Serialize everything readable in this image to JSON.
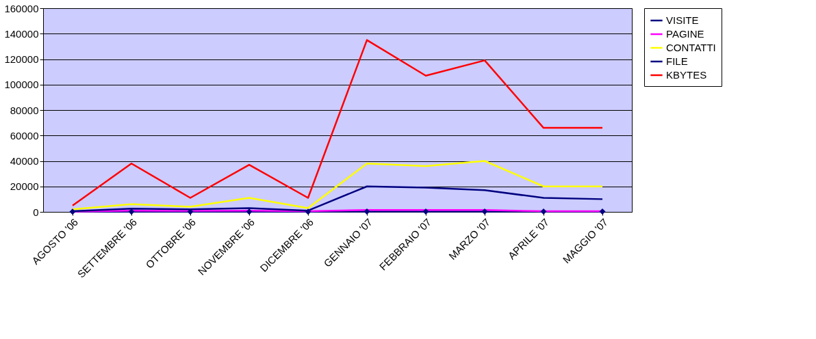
{
  "chart_data": {
    "type": "line",
    "categories": [
      "AGOSTO '06",
      "SETTEMBRE '06",
      "OTTOBRE '06",
      "NOVEMBRE '06",
      "DICEMBRE '06",
      "GENNAIO '07",
      "FEBBRAIO '07",
      "MARZO '07",
      "APRILE '07",
      "MAGGIO '07"
    ],
    "series": [
      {
        "name": "VISITE",
        "color": "#000080",
        "marker": "diamond",
        "values": [
          100,
          100,
          100,
          100,
          100,
          300,
          300,
          300,
          300,
          300
        ]
      },
      {
        "name": "PAGINE",
        "color": "#ff00ff",
        "marker": "none",
        "values": [
          300,
          1000,
          800,
          1000,
          500,
          1500,
          1500,
          1500,
          500,
          500
        ]
      },
      {
        "name": "CONTATTI",
        "color": "#ffff00",
        "marker": "none",
        "values": [
          2000,
          6000,
          4000,
          11000,
          3000,
          38000,
          36000,
          40000,
          20000,
          20000
        ]
      },
      {
        "name": "FILE",
        "color": "#000080",
        "marker": "none",
        "values": [
          500,
          2500,
          2000,
          3000,
          1000,
          20000,
          19000,
          17000,
          11000,
          10000
        ]
      },
      {
        "name": "KBYTES",
        "color": "#ff0000",
        "marker": "none",
        "values": [
          5000,
          38000,
          11000,
          37000,
          11000,
          135000,
          107000,
          119000,
          66000,
          66000
        ]
      }
    ],
    "ylim": [
      0,
      160000
    ],
    "yticks": [
      0,
      20000,
      40000,
      60000,
      80000,
      100000,
      120000,
      140000,
      160000
    ],
    "grid": "y",
    "legend": "right"
  }
}
